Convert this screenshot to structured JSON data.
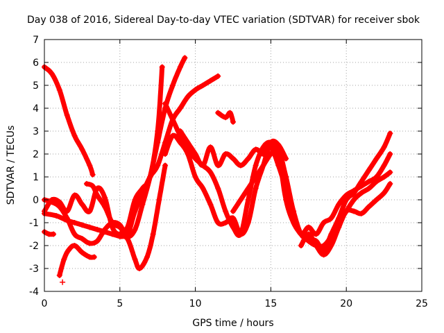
{
  "chart_data": {
    "type": "scatter",
    "title": "Day 038 of 2016, Sidereal Day-to-day VTEC variation (SDTVAR) for receiver sbok",
    "xlabel": "GPS time / hours",
    "ylabel": "SDTVAR / TECUs",
    "xlim": [
      0,
      25
    ],
    "ylim": [
      -4,
      7
    ],
    "xticks": [
      0,
      5,
      10,
      15,
      20,
      25
    ],
    "yticks": [
      -4,
      -3,
      -2,
      -1,
      0,
      1,
      2,
      3,
      4,
      5,
      6,
      7
    ],
    "grid": true,
    "marker": "+",
    "color": "#ff0000",
    "series": [
      {
        "x": [
          0,
          0.5,
          1,
          1.5,
          2,
          2.5,
          3,
          3.2
        ],
        "y": [
          5.8,
          5.5,
          4.8,
          3.7,
          2.8,
          2.2,
          1.5,
          1.1
        ]
      },
      {
        "x": [
          0,
          0.3,
          0.6
        ],
        "y": [
          -1.4,
          -1.5,
          -1.5
        ]
      },
      {
        "x": [
          0,
          0.8,
          1.5,
          2,
          2.5,
          3,
          3.5,
          4,
          4.5,
          5,
          5.5,
          6,
          6.3,
          6.8,
          7.2,
          7.6,
          8
        ],
        "y": [
          -0.6,
          -0.7,
          -0.9,
          -1,
          -1.1,
          -1.2,
          -1.3,
          -1.4,
          -1.5,
          -1.6,
          -1.7,
          -2.6,
          -3.0,
          -2.5,
          -1.5,
          0,
          1.5
        ]
      },
      {
        "x": [
          0,
          0.5,
          1,
          1.5,
          2,
          2.5,
          3,
          3.5,
          4,
          4.5,
          5,
          5.5,
          6,
          6.5,
          7,
          7.5,
          8,
          8.5,
          9,
          9.3
        ],
        "y": [
          0,
          -0.1,
          -0.3,
          -0.8,
          -1.5,
          -1.7,
          -1.9,
          -1.8,
          -1.3,
          -1.0,
          -1.1,
          -1.6,
          -1.3,
          -0.2,
          1.0,
          2.5,
          4.0,
          5.0,
          5.8,
          6.2
        ]
      },
      {
        "x": [
          0,
          0.5,
          1,
          1.5,
          2,
          2.5,
          3,
          3.5,
          4,
          4.5,
          5,
          5.5,
          6,
          6.5,
          7,
          7.5,
          7.8
        ],
        "y": [
          -0.5,
          0,
          -0.1,
          -0.5,
          0.2,
          -0.2,
          -0.5,
          0.5,
          0.1,
          -1.2,
          -1.5,
          -1.2,
          0,
          0.5,
          1.0,
          3.0,
          5.8
        ]
      },
      {
        "x": [
          1,
          1.3,
          1.6,
          2,
          2.5,
          3,
          3.3
        ],
        "y": [
          -3.3,
          -2.6,
          -2.2,
          -2.0,
          -2.3,
          -2.5,
          -2.5
        ]
      },
      {
        "x": [
          1.2
        ],
        "y": [
          -3.6
        ]
      },
      {
        "x": [
          2.8,
          3.2,
          3.5,
          4,
          4.5,
          5,
          5.5,
          6,
          6.5,
          7,
          7.5,
          8,
          8.5,
          9,
          9.5,
          10,
          10.5,
          11,
          11.5
        ],
        "y": [
          0.7,
          0.6,
          0.2,
          -0.3,
          -1,
          -1.2,
          -1.5,
          -0.5,
          0.3,
          1.0,
          1.5,
          2.5,
          3.5,
          4.0,
          4.5,
          4.8,
          5.0,
          5.2,
          5.4
        ]
      },
      {
        "x": [
          8,
          8.5,
          9,
          9.5,
          10,
          10.5,
          11,
          11.5,
          12,
          12.5,
          13,
          13.5,
          14,
          14.5,
          15,
          15.5,
          16
        ],
        "y": [
          4.2,
          3.5,
          2.8,
          2.2,
          1.8,
          1.5,
          1.2,
          0.5,
          -0.5,
          -1.2,
          -1.5,
          0,
          1.5,
          2.3,
          2.5,
          2.0,
          1.0
        ]
      },
      {
        "x": [
          8,
          8.5,
          9,
          9.5,
          10,
          10.5,
          11,
          11.5,
          12,
          12.5,
          13,
          13.5,
          14,
          14.5,
          15,
          15.5,
          16
        ],
        "y": [
          2.0,
          2.8,
          2.5,
          2.0,
          1.0,
          0.5,
          -0.2,
          -1.0,
          -1.0,
          -0.8,
          -1.5,
          -1.0,
          0.5,
          1.5,
          2.5,
          2.4,
          1.8
        ]
      },
      {
        "x": [
          9,
          9.5,
          10,
          10.5,
          11,
          11.5,
          12,
          12.5,
          13,
          13.5,
          14,
          14.5,
          15,
          15.5,
          16,
          16.5
        ],
        "y": [
          3.0,
          2.5,
          2.0,
          1.5,
          2.3,
          1.5,
          2.0,
          1.8,
          1.5,
          1.8,
          2.2,
          2.0,
          2.3,
          1.5,
          0.5,
          -0.5
        ]
      },
      {
        "x": [
          11.5,
          12,
          12.3,
          12.5
        ],
        "y": [
          3.8,
          3.6,
          3.8,
          3.4
        ]
      },
      {
        "x": [
          12.5,
          13,
          13.5,
          14,
          14.5,
          15,
          15.5,
          16,
          16.5,
          17,
          17.5,
          18,
          18.5,
          19,
          19.5,
          20,
          20.5,
          21,
          21.5,
          22,
          22.5,
          22.9
        ],
        "y": [
          -0.5,
          0,
          0.5,
          1.0,
          1.5,
          2.0,
          2.2,
          1.0,
          -0.5,
          -1.5,
          -1.7,
          -1.8,
          -2.2,
          -1.5,
          -0.8,
          0,
          0.3,
          0.8,
          1.3,
          1.8,
          2.3,
          2.9
        ]
      },
      {
        "x": [
          15,
          15.5,
          16,
          16.5,
          17,
          17.5,
          18,
          18.5,
          19,
          19.5,
          20,
          20.5,
          21,
          21.5,
          22,
          22.5,
          22.9
        ],
        "y": [
          2.5,
          2.0,
          0,
          -1.0,
          -1.5,
          -1.8,
          -2.0,
          -2.0,
          -1.6,
          -1.0,
          -0.5,
          0,
          0.3,
          0.5,
          0.8,
          1.0,
          1.2
        ]
      },
      {
        "x": [
          17,
          17.5,
          18,
          18.5,
          19,
          19.5,
          20,
          20.5,
          21,
          21.5,
          22,
          22.5,
          22.9
        ],
        "y": [
          -2.0,
          -1.5,
          -2.0,
          -2.4,
          -2.0,
          -1.2,
          -0.5,
          -0.5,
          -0.6,
          -0.3,
          0,
          0.3,
          0.7
        ]
      },
      {
        "x": [
          16,
          16.5,
          17,
          17.5,
          18,
          18.5,
          19,
          19.5,
          20,
          20.5,
          21,
          21.5,
          22,
          22.5,
          22.9
        ],
        "y": [
          0.5,
          -0.8,
          -1.5,
          -1.2,
          -1.5,
          -1.0,
          -0.8,
          -0.2,
          0.2,
          0.4,
          0.6,
          0.8,
          1.0,
          1.5,
          2.0
        ]
      }
    ]
  }
}
